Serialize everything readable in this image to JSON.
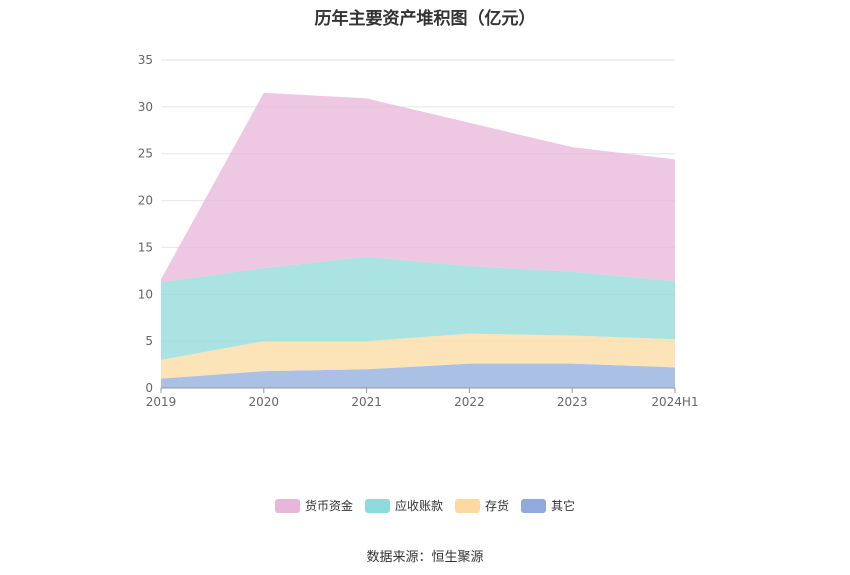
{
  "chart_data": {
    "type": "area",
    "stacked": true,
    "title": "历年主要资产堆积图（亿元）",
    "categories": [
      "2019",
      "2020",
      "2021",
      "2022",
      "2023",
      "2024H1"
    ],
    "ylim": [
      0,
      35
    ],
    "yticks": [
      0,
      5,
      10,
      15,
      20,
      25,
      30,
      35
    ],
    "grid": true,
    "legend_position": "bottom",
    "series": [
      {
        "name": "其它",
        "color": "#8fabdc",
        "values": [
          1.0,
          1.8,
          2.0,
          2.6,
          2.6,
          2.2
        ]
      },
      {
        "name": "存货",
        "color": "#fcd9a0",
        "values": [
          2.0,
          3.2,
          3.0,
          3.2,
          3.0,
          3.0
        ]
      },
      {
        "name": "应收账款",
        "color": "#8fdada",
        "values": [
          8.3,
          7.8,
          9.0,
          7.2,
          6.8,
          6.2
        ]
      },
      {
        "name": "货币资金",
        "color": "#e8b6d8",
        "values": [
          0.3,
          18.7,
          16.9,
          15.3,
          13.3,
          13.0
        ]
      }
    ],
    "legend_order": [
      "货币资金",
      "应收账款",
      "存货",
      "其它"
    ]
  },
  "source_text": "数据来源：恒生聚源"
}
